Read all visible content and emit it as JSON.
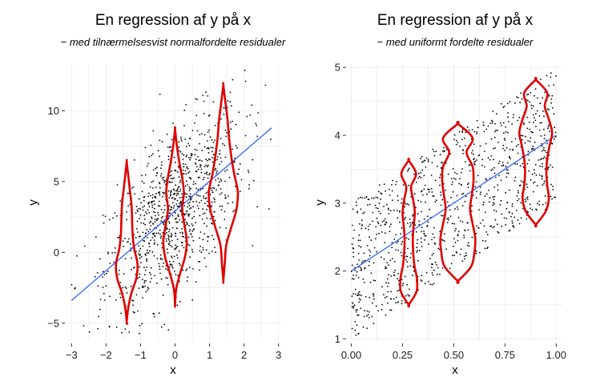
{
  "chart_data": [
    {
      "type": "scatter",
      "title": "En regression af y på x",
      "subtitle": "− med tilnærmelsesvist normalfordelte residualer",
      "xlabel": "x",
      "ylabel": "y",
      "xlim": [
        -3.1,
        3.1
      ],
      "ylim": [
        -6.2,
        13.3
      ],
      "xticks": [
        -3,
        -2,
        -1,
        0,
        1,
        2,
        3
      ],
      "yticks": [
        -5,
        0,
        5,
        10
      ],
      "regression_line": {
        "x": [
          -3,
          2.8
        ],
        "y": [
          -3.4,
          8.8
        ]
      },
      "violins": [
        {
          "x": -1.4,
          "ymin": -4.9,
          "ymax": 6.4,
          "max_halfwidth": 0.31
        },
        {
          "x": 0.0,
          "ymin": -3.7,
          "ymax": 8.7,
          "max_halfwidth": 0.34
        },
        {
          "x": 1.4,
          "ymin": -2.0,
          "ymax": 11.8,
          "max_halfwidth": 0.42
        }
      ],
      "points": {
        "n": 1000,
        "x_distribution": "normal",
        "x_mean": 0,
        "x_sd": 1,
        "residual_sd": 2.8
      }
    },
    {
      "type": "scatter",
      "title": "En regression af y på x",
      "subtitle": "− med uniformt fordelte residualer",
      "xlabel": "x",
      "ylabel": "y",
      "xlim": [
        -0.01,
        1.03
      ],
      "ylim": [
        0.98,
        5.05
      ],
      "xticks": [
        "0.00",
        "0.25",
        "0.50",
        "0.75",
        "1.00"
      ],
      "yticks": [
        1,
        2,
        3,
        4,
        5
      ],
      "regression_line": {
        "x": [
          0,
          1
        ],
        "y": [
          2.0,
          4.0
        ]
      },
      "violins": [
        {
          "x": 0.28,
          "ymin": 1.5,
          "ymax": 3.63,
          "max_halfwidth": 0.04
        },
        {
          "x": 0.52,
          "ymin": 1.85,
          "ymax": 4.17,
          "max_halfwidth": 0.085
        },
        {
          "x": 0.9,
          "ymin": 2.68,
          "ymax": 4.82,
          "max_halfwidth": 0.08
        }
      ],
      "points": {
        "n": 1000,
        "x_distribution": "uniform",
        "x_range": [
          0,
          1
        ],
        "residual_range": [
          -1,
          1
        ]
      }
    }
  ]
}
